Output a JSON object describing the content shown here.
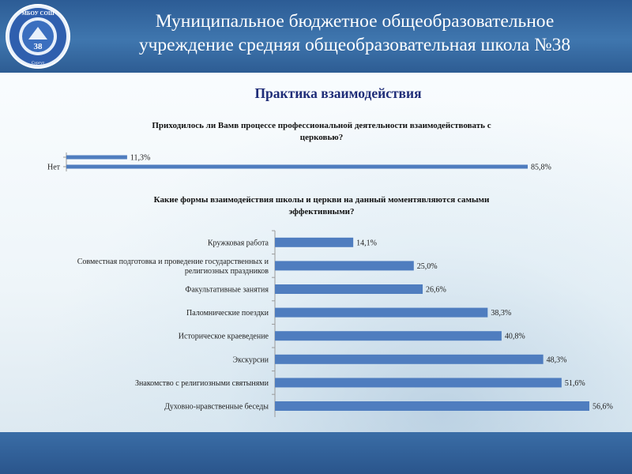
{
  "header": {
    "title_line1": "Муниципальное бюджетное общеобразовательное",
    "title_line2": "учреждение средняя общеобразовательная школа №38",
    "logo_top_text": "МБОУ СОШ",
    "logo_number": "38",
    "logo_bottom_text": "Сургут"
  },
  "page_title": "Практика взаимодействия",
  "colors": {
    "bar": "#4f7dbf",
    "title": "#1f2d78",
    "header_bg": "#3a6ca6"
  },
  "chart_data": [
    {
      "type": "bar",
      "orientation": "horizontal",
      "title_line1": "Приходилось ли Вамв процессе профессиональной деятельности взаимодействовать с",
      "title_line2": "церковью?",
      "categories": [
        "",
        "Нет"
      ],
      "values": [
        11.3,
        85.8
      ],
      "labels": [
        "11,3%",
        "85,8%"
      ],
      "xlim": [
        0,
        100
      ]
    },
    {
      "type": "bar",
      "orientation": "horizontal",
      "title_line1": "Какие формы взаимодействия школы и церкви на данный моментявляются самыми",
      "title_line2": "эффективными?",
      "categories": [
        [
          "Кружковая работа"
        ],
        [
          "Совместная подготовка и проведение государственных и",
          "религиозных праздников"
        ],
        [
          "Факультативные занятия"
        ],
        [
          "Паломнические поездки"
        ],
        [
          "Историческое краеведение"
        ],
        [
          "Экскурсии"
        ],
        [
          "Знакомство с религиозными святынями"
        ],
        [
          "Духовно-нравственные беседы"
        ]
      ],
      "values": [
        14.1,
        25.0,
        26.6,
        38.3,
        40.8,
        48.3,
        51.6,
        56.6
      ],
      "labels": [
        "14,1%",
        "25,0%",
        "26,6%",
        "38,3%",
        "40,8%",
        "48,3%",
        "51,6%",
        "56,6%"
      ],
      "xlim": [
        0,
        60
      ]
    }
  ]
}
